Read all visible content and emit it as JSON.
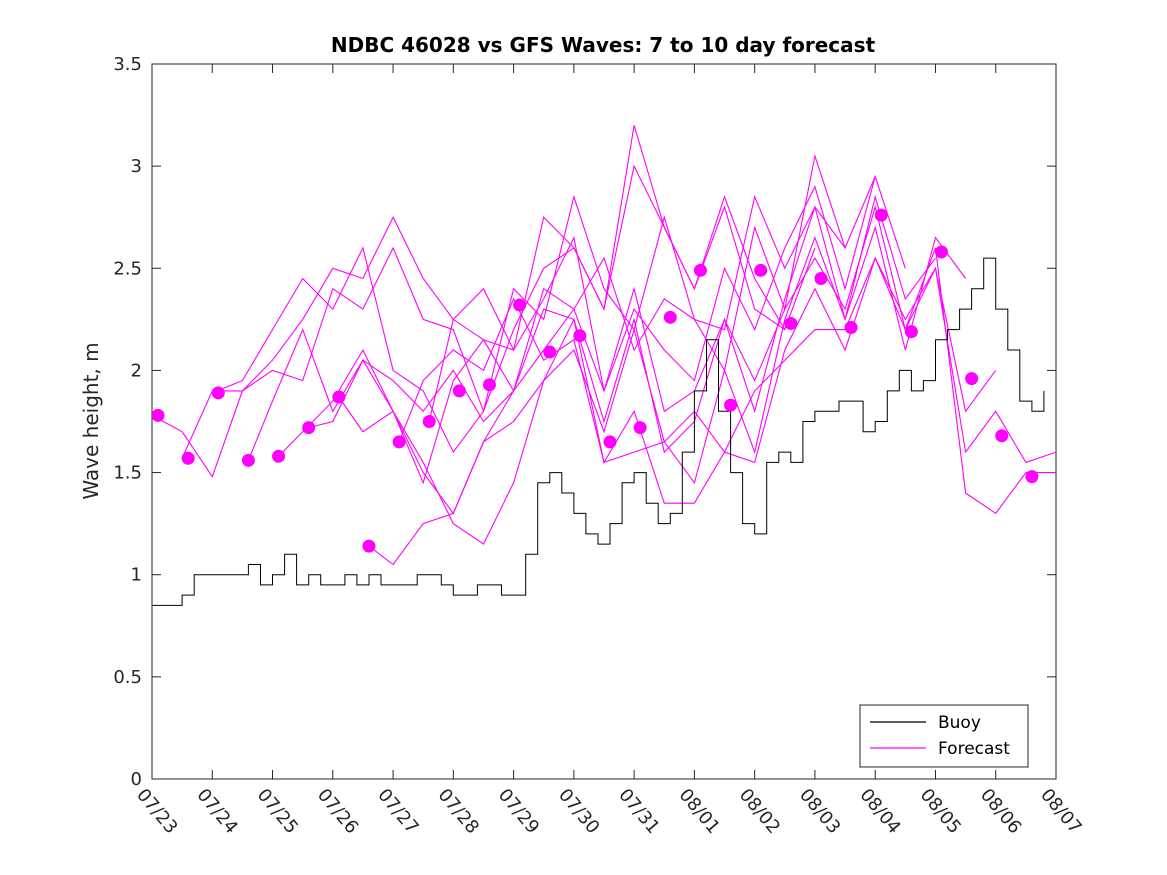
{
  "chart_data": {
    "type": "line",
    "title": "NDBC 46028 vs GFS Waves: 7 to 10 day forecast",
    "xlabel": "",
    "ylabel": "Wave height, m",
    "xlim": [
      0,
      15
    ],
    "ylim": [
      0,
      3.5
    ],
    "grid": false,
    "legend_position": "bottom-right",
    "x_tick_labels": [
      "07/23",
      "07/24",
      "07/25",
      "07/26",
      "07/27",
      "07/28",
      "07/29",
      "07/30",
      "07/31",
      "08/01",
      "08/02",
      "08/03",
      "08/04",
      "08/05",
      "08/06",
      "08/07"
    ],
    "y_tick_labels": [
      "0",
      "0.5",
      "1",
      "1.5",
      "2",
      "2.5",
      "3",
      "3.5"
    ],
    "y_ticks": [
      0,
      0.5,
      1,
      1.5,
      2,
      2.5,
      3,
      3.5
    ],
    "colors": {
      "buoy": "#000000",
      "forecast": "#ff00ff",
      "axis": "#262626"
    },
    "legend": [
      {
        "label": "Buoy",
        "color": "#000000",
        "series": "buoy"
      },
      {
        "label": "Forecast",
        "color": "#ff00ff",
        "series": "forecast"
      }
    ],
    "buoy": {
      "name": "Buoy",
      "x": [
        0.0,
        0.33,
        0.5,
        0.7,
        1.0,
        1.2,
        1.4,
        1.6,
        1.8,
        2.0,
        2.2,
        2.4,
        2.6,
        2.8,
        3.0,
        3.2,
        3.4,
        3.6,
        3.8,
        4.0,
        4.2,
        4.4,
        4.6,
        4.8,
        5.0,
        5.2,
        5.4,
        5.6,
        5.8,
        6.0,
        6.2,
        6.4,
        6.6,
        6.8,
        7.0,
        7.2,
        7.4,
        7.6,
        7.8,
        8.0,
        8.2,
        8.4,
        8.6,
        8.8,
        9.0,
        9.2,
        9.4,
        9.6,
        9.8,
        10.0,
        10.2,
        10.4,
        10.6,
        10.8,
        11.0,
        11.2,
        11.4,
        11.6,
        11.8,
        12.0,
        12.2,
        12.4,
        12.6,
        12.8,
        13.0,
        13.2,
        13.4,
        13.6,
        13.8,
        14.0,
        14.2,
        14.4,
        14.6,
        14.8
      ],
      "y": [
        0.85,
        0.85,
        0.9,
        1.0,
        1.0,
        1.0,
        1.0,
        1.05,
        0.95,
        1.0,
        1.1,
        0.95,
        1.0,
        0.95,
        0.95,
        1.0,
        0.95,
        1.0,
        0.95,
        0.95,
        0.95,
        1.0,
        1.0,
        0.95,
        0.9,
        0.9,
        0.95,
        0.95,
        0.9,
        0.9,
        1.1,
        1.45,
        1.5,
        1.4,
        1.3,
        1.2,
        1.15,
        1.25,
        1.45,
        1.5,
        1.35,
        1.25,
        1.3,
        1.6,
        1.9,
        2.15,
        1.8,
        1.5,
        1.25,
        1.2,
        1.55,
        1.6,
        1.55,
        1.75,
        1.8,
        1.8,
        1.85,
        1.85,
        1.7,
        1.75,
        1.9,
        2.0,
        1.9,
        1.95,
        2.15,
        2.2,
        2.3,
        2.4,
        2.55,
        2.3,
        2.1,
        1.85,
        1.8,
        1.9
      ]
    },
    "forecast_runs": [
      {
        "name": "Forecast",
        "x": [
          0.0,
          0.5,
          1.0,
          1.5,
          2.0,
          2.5,
          3.0,
          3.5,
          4.0,
          4.5,
          5.0,
          5.5,
          6.0,
          6.5,
          7.0,
          7.5,
          8.0,
          8.5,
          9.0,
          9.5,
          10.0,
          10.5
        ],
        "y": [
          1.78,
          1.7,
          1.48,
          1.9,
          2.0,
          1.95,
          2.4,
          2.3,
          2.6,
          2.25,
          2.2,
          1.8,
          2.2,
          2.5,
          2.6,
          2.3,
          3.2,
          2.7,
          2.4,
          2.8,
          2.3,
          2.2
        ]
      },
      {
        "name": "Forecast",
        "x": [
          0.5,
          1.0,
          1.5,
          2.0,
          2.5,
          3.0,
          3.5,
          4.0,
          4.5,
          5.0,
          5.5,
          6.0,
          6.5,
          7.0,
          7.5,
          8.0,
          8.5,
          9.0,
          9.5,
          10.0,
          10.5,
          11.0
        ],
        "y": [
          1.57,
          1.9,
          1.9,
          2.05,
          2.25,
          2.5,
          2.45,
          2.75,
          2.45,
          2.25,
          2.15,
          2.1,
          2.75,
          2.6,
          2.3,
          3.0,
          2.7,
          2.4,
          2.85,
          2.45,
          2.2,
          2.6
        ]
      },
      {
        "name": "Forecast",
        "x": [
          1.0,
          1.5,
          2.0,
          2.5,
          3.0,
          3.5,
          4.0,
          4.5,
          5.0,
          5.5,
          6.0,
          6.5,
          7.0,
          7.5,
          8.0,
          8.5,
          9.0,
          9.5,
          10.0,
          10.5,
          11.0,
          11.5
        ],
        "y": [
          1.89,
          1.95,
          2.2,
          2.45,
          2.3,
          2.6,
          2.0,
          1.9,
          1.6,
          1.8,
          2.4,
          2.25,
          2.85,
          2.4,
          2.2,
          2.75,
          2.25,
          2.2,
          2.85,
          2.5,
          2.8,
          2.6
        ]
      },
      {
        "name": "Forecast",
        "x": [
          1.6,
          2.0,
          2.5,
          3.0,
          3.5,
          4.0,
          4.5,
          5.0,
          5.5,
          6.0,
          6.5,
          7.0,
          7.5,
          8.0,
          8.5,
          9.0,
          9.5,
          10.0,
          10.5,
          11.0,
          11.5,
          12.0
        ],
        "y": [
          1.56,
          1.85,
          2.2,
          1.8,
          2.05,
          1.95,
          1.8,
          2.0,
          1.75,
          1.9,
          2.4,
          2.3,
          2.55,
          2.1,
          2.35,
          2.25,
          2.0,
          2.7,
          2.3,
          3.05,
          2.6,
          2.95
        ]
      },
      {
        "name": "Forecast",
        "x": [
          2.1,
          2.5,
          3.0,
          3.5,
          4.0,
          4.5,
          5.0,
          5.5,
          6.0,
          6.5,
          7.0,
          7.5,
          8.0,
          8.5,
          9.0,
          9.5,
          10.0,
          10.5,
          11.0,
          11.5,
          12.0,
          12.5
        ],
        "y": [
          1.58,
          1.7,
          1.85,
          2.1,
          1.8,
          1.45,
          1.95,
          2.15,
          1.9,
          2.1,
          2.3,
          1.9,
          2.3,
          2.1,
          1.95,
          2.5,
          2.2,
          2.6,
          2.9,
          2.4,
          2.95,
          2.5
        ]
      },
      {
        "name": "Forecast",
        "x": [
          2.6,
          3.0,
          3.5,
          4.0,
          4.5,
          5.0,
          5.5,
          6.0,
          6.5,
          7.0,
          7.5,
          8.0,
          8.5,
          9.0,
          9.5,
          10.0,
          10.5,
          11.0,
          11.5,
          12.0,
          12.5,
          13.0
        ],
        "y": [
          1.72,
          1.75,
          2.05,
          1.8,
          1.5,
          1.3,
          1.65,
          1.9,
          2.3,
          2.25,
          1.75,
          2.25,
          1.6,
          1.75,
          2.25,
          1.8,
          2.35,
          2.8,
          2.25,
          2.85,
          2.35,
          2.55
        ]
      },
      {
        "name": "Forecast",
        "x": [
          3.1,
          3.5,
          4.0,
          4.5,
          5.0,
          5.5,
          6.0,
          6.5,
          7.0,
          7.5,
          8.0,
          8.5,
          9.0,
          9.5,
          10.0,
          10.5,
          11.0,
          11.5,
          12.0,
          12.5,
          13.0,
          13.5
        ],
        "y": [
          1.87,
          1.7,
          1.8,
          1.55,
          1.25,
          1.15,
          1.45,
          1.95,
          2.1,
          1.7,
          2.2,
          1.65,
          1.45,
          2.0,
          1.6,
          2.25,
          2.65,
          2.25,
          2.7,
          2.1,
          2.65,
          2.45
        ]
      },
      {
        "name": "Forecast",
        "x": [
          3.6,
          4.0,
          4.5,
          5.0,
          5.5,
          6.0,
          6.5,
          7.0,
          7.5,
          8.0,
          8.5,
          9.0,
          9.5,
          10.0,
          10.5,
          11.0,
          11.5,
          12.0,
          12.5,
          13.0,
          13.5,
          14.0
        ],
        "y": [
          1.14,
          1.05,
          1.25,
          1.3,
          1.65,
          1.75,
          1.95,
          2.25,
          1.55,
          1.8,
          1.35,
          1.35,
          1.6,
          1.55,
          2.1,
          2.4,
          2.1,
          2.55,
          2.25,
          2.5,
          1.8,
          2.0
        ]
      },
      {
        "name": "Forecast",
        "x": [
          4.1,
          4.5,
          5.0,
          5.5,
          6.0,
          6.5,
          7.0,
          7.5,
          8.0,
          8.5,
          9.0,
          9.5,
          10.0,
          10.5,
          11.0,
          11.5,
          12.0,
          12.5,
          13.0,
          13.5,
          14.0,
          14.5,
          15.0
        ],
        "y": [
          1.65,
          1.95,
          2.1,
          2.0,
          2.35,
          2.05,
          2.15,
          1.55,
          1.6,
          1.65,
          1.8,
          1.6,
          1.9,
          2.05,
          2.2,
          2.2,
          2.55,
          2.2,
          2.5,
          1.6,
          1.8,
          1.55,
          1.6
        ]
      },
      {
        "name": "Forecast",
        "x": [
          4.6,
          5.0,
          5.5,
          6.0,
          6.5,
          7.0,
          7.5,
          8.0,
          8.5,
          9.0,
          9.5,
          10.0,
          10.5,
          11.0,
          11.5,
          12.0,
          12.5,
          13.0,
          13.5,
          14.0,
          14.5,
          15.0
        ],
        "y": [
          1.75,
          2.25,
          2.4,
          2.1,
          2.35,
          2.65,
          1.9,
          2.4,
          1.8,
          1.9,
          2.25,
          1.95,
          2.3,
          2.55,
          2.3,
          2.8,
          2.2,
          2.6,
          1.4,
          1.3,
          1.5,
          1.5
        ]
      }
    ],
    "forecast_markers": {
      "name": "Forecast",
      "x": [
        0.1,
        0.6,
        1.1,
        1.6,
        2.1,
        2.6,
        3.1,
        3.6,
        4.1,
        4.6,
        5.1,
        5.6,
        6.1,
        6.6,
        7.1,
        7.6,
        8.1,
        8.6,
        9.1,
        9.6,
        10.1,
        10.6,
        11.1,
        11.6,
        12.1,
        12.6,
        13.1,
        13.6,
        14.1,
        14.6
      ],
      "y": [
        1.78,
        1.57,
        1.89,
        1.56,
        1.58,
        1.72,
        1.87,
        1.14,
        1.65,
        1.75,
        1.9,
        1.93,
        2.32,
        2.09,
        2.17,
        1.65,
        1.72,
        2.26,
        2.49,
        1.83,
        2.49,
        2.23,
        2.45,
        2.21,
        2.76,
        2.19,
        2.58,
        1.96,
        1.68,
        1.48
      ]
    }
  }
}
